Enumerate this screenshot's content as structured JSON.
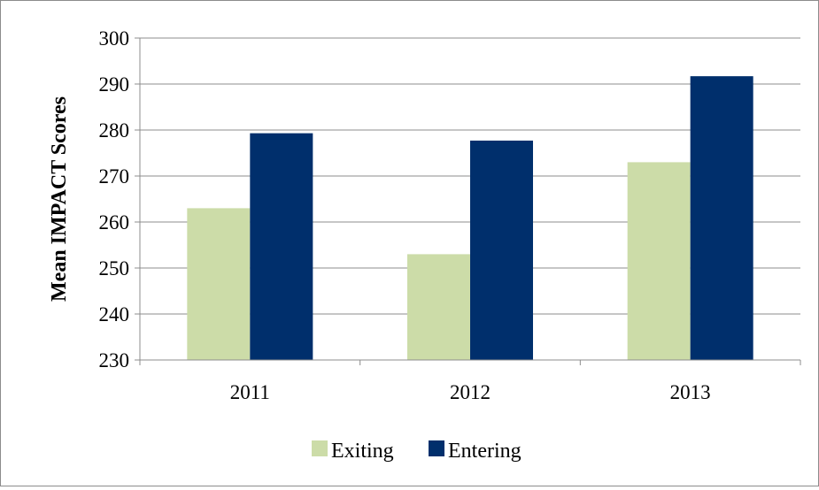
{
  "chart_data": {
    "type": "bar",
    "title": "",
    "xlabel": "",
    "ylabel": "Mean IMPACT Scores",
    "categories": [
      "2011",
      "2012",
      "2013"
    ],
    "series": [
      {
        "name": "Exiting",
        "color": "#ccdca8",
        "values": [
          263,
          253,
          273
        ]
      },
      {
        "name": "Entering",
        "color": "#002f6c",
        "values": [
          279.3,
          277.7,
          291.7
        ]
      }
    ],
    "ylim": [
      230,
      300
    ],
    "yticks": [
      "230",
      "240",
      "250",
      "260",
      "270",
      "280",
      "290",
      "300"
    ],
    "grid": true,
    "legend_position": "bottom"
  }
}
